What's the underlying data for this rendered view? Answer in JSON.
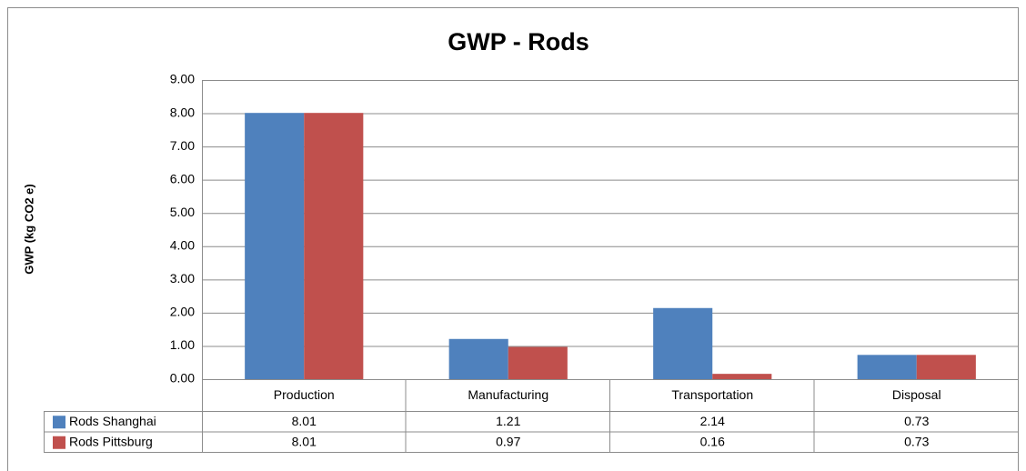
{
  "chart_data": {
    "type": "bar",
    "title": "GWP - Rods",
    "y_label": "GWP (kg CO2 e)",
    "categories": [
      "Production",
      "Manufacturing",
      "Transportation",
      "Disposal"
    ],
    "series": [
      {
        "name": "Rods Shanghai",
        "color": "#4f81bd",
        "values": [
          8.01,
          1.21,
          2.14,
          0.73
        ]
      },
      {
        "name": "Rods Pittsburg",
        "color": "#c0504d",
        "values": [
          8.01,
          0.97,
          0.16,
          0.73
        ]
      }
    ],
    "ylim": [
      0,
      9
    ],
    "yticks": [
      {
        "value": 0,
        "label": "0.00"
      },
      {
        "value": 1,
        "label": "1.00"
      },
      {
        "value": 2,
        "label": "2.00"
      },
      {
        "value": 3,
        "label": "3.00"
      },
      {
        "value": 4,
        "label": "4.00"
      },
      {
        "value": 5,
        "label": "5.00"
      },
      {
        "value": 6,
        "label": "6.00"
      },
      {
        "value": 7,
        "label": "7.00"
      },
      {
        "value": 8,
        "label": "8.00"
      },
      {
        "value": 9,
        "label": "9.00"
      }
    ],
    "grid": true,
    "data_table": true
  }
}
